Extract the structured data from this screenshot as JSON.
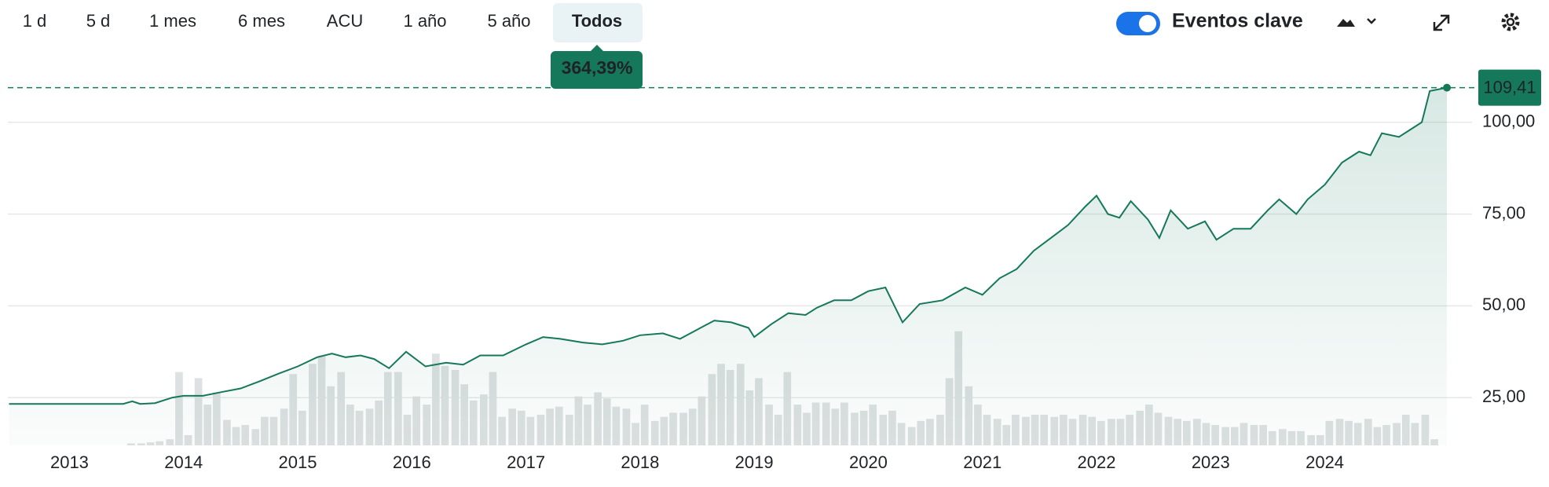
{
  "toolbar": {
    "ranges": [
      "1 d",
      "5 d",
      "1 mes",
      "6 mes",
      "ACU",
      "1 año",
      "5 año",
      "Todos"
    ],
    "selected": 7,
    "change_label": "364,39%",
    "events_label": "Eventos clave"
  },
  "chart_data": {
    "type": "line",
    "grid": true,
    "color": "#15785b",
    "xlim": [
      2012.46,
      2025.29
    ],
    "ylim": [
      12,
      116.6
    ],
    "xticks": [
      2013,
      2014,
      2015,
      2016,
      2017,
      2018,
      2019,
      2020,
      2021,
      2022,
      2023,
      2024
    ],
    "yticks": [
      {
        "value": 25,
        "label": "25,00"
      },
      {
        "value": 50,
        "label": "50,00"
      },
      {
        "value": 75,
        "label": "75,00"
      },
      {
        "value": 100,
        "label": "100,00"
      }
    ],
    "last_price": {
      "value": 109.41,
      "label": "109,41"
    },
    "series": [
      {
        "color": "#15785b",
        "x": [
          2012.47,
          2013.47,
          2013.55,
          2013.62,
          2013.75,
          2013.9,
          2014.0,
          2014.17,
          2014.33,
          2014.5,
          2014.67,
          2014.83,
          2015.0,
          2015.17,
          2015.3,
          2015.42,
          2015.55,
          2015.67,
          2015.8,
          2015.95,
          2016.12,
          2016.3,
          2016.45,
          2016.6,
          2016.8,
          2017.0,
          2017.15,
          2017.3,
          2017.5,
          2017.67,
          2017.85,
          2018.0,
          2018.2,
          2018.35,
          2018.5,
          2018.65,
          2018.8,
          2018.95,
          2019.0,
          2019.15,
          2019.3,
          2019.45,
          2019.55,
          2019.7,
          2019.85,
          2020.0,
          2020.15,
          2020.3,
          2020.45,
          2020.65,
          2020.85,
          2021.0,
          2021.15,
          2021.3,
          2021.45,
          2021.6,
          2021.75,
          2021.9,
          2022.0,
          2022.1,
          2022.2,
          2022.3,
          2022.45,
          2022.55,
          2022.65,
          2022.8,
          2022.95,
          2023.05,
          2023.2,
          2023.35,
          2023.5,
          2023.6,
          2023.75,
          2023.85,
          2024.0,
          2024.15,
          2024.3,
          2024.4,
          2024.5,
          2024.65,
          2024.75,
          2024.85,
          2024.92,
          2025.07
        ],
        "values": [
          23.3,
          23.3,
          24,
          23.3,
          23.5,
          25,
          25.5,
          25.5,
          26.5,
          27.5,
          29.5,
          31.5,
          33.5,
          36,
          37,
          36,
          36.5,
          35.5,
          33,
          37.5,
          33.5,
          34.5,
          34,
          36.5,
          36.5,
          39.5,
          41.5,
          41,
          40,
          39.5,
          40.5,
          42,
          42.5,
          41,
          43.5,
          46,
          45.5,
          44,
          41.5,
          45,
          48,
          47.5,
          49.5,
          51.5,
          51.5,
          54,
          55,
          45.5,
          50.5,
          51.5,
          55,
          53,
          57.5,
          60,
          65,
          68.5,
          72,
          77,
          80,
          75,
          74,
          78.5,
          73.5,
          68.5,
          76,
          71,
          73,
          68,
          71,
          71,
          76,
          79,
          75,
          79,
          83,
          89,
          92,
          91,
          97,
          96,
          98,
          100,
          108.5,
          109.41
        ]
      }
    ],
    "volume": {
      "color": "#dde1e1",
      "ylim": [
        0,
        377
      ],
      "x": [
        2013.54,
        2013.63,
        2013.71,
        2013.79,
        2013.88,
        2013.96,
        2014.04,
        2014.13,
        2014.21,
        2014.29,
        2014.38,
        2014.46,
        2014.54,
        2014.63,
        2014.71,
        2014.79,
        2014.88,
        2014.96,
        2015.04,
        2015.13,
        2015.21,
        2015.29,
        2015.38,
        2015.46,
        2015.54,
        2015.63,
        2015.71,
        2015.79,
        2015.88,
        2015.96,
        2016.04,
        2016.13,
        2016.21,
        2016.29,
        2016.38,
        2016.46,
        2016.54,
        2016.63,
        2016.71,
        2016.79,
        2016.88,
        2016.96,
        2017.04,
        2017.13,
        2017.21,
        2017.29,
        2017.38,
        2017.46,
        2017.54,
        2017.63,
        2017.71,
        2017.79,
        2017.88,
        2017.96,
        2018.04,
        2018.13,
        2018.21,
        2018.29,
        2018.38,
        2018.46,
        2018.54,
        2018.63,
        2018.71,
        2018.79,
        2018.88,
        2018.96,
        2019.04,
        2019.13,
        2019.21,
        2019.29,
        2019.38,
        2019.46,
        2019.54,
        2019.63,
        2019.71,
        2019.79,
        2019.88,
        2019.96,
        2020.04,
        2020.13,
        2020.21,
        2020.29,
        2020.38,
        2020.46,
        2020.54,
        2020.63,
        2020.71,
        2020.79,
        2020.88,
        2020.96,
        2021.04,
        2021.13,
        2021.21,
        2021.29,
        2021.38,
        2021.46,
        2021.54,
        2021.63,
        2021.71,
        2021.79,
        2021.88,
        2021.96,
        2022.04,
        2022.13,
        2022.21,
        2022.29,
        2022.38,
        2022.46,
        2022.54,
        2022.63,
        2022.71,
        2022.79,
        2022.88,
        2022.96,
        2023.04,
        2023.13,
        2023.21,
        2023.29,
        2023.38,
        2023.46,
        2023.54,
        2023.63,
        2023.71,
        2023.79,
        2023.88,
        2023.96,
        2024.04,
        2024.13,
        2024.21,
        2024.29,
        2024.38,
        2024.46,
        2024.54,
        2024.63,
        2024.71,
        2024.79,
        2024.88,
        2024.96
      ],
      "values": [
        2,
        2,
        3,
        4,
        6,
        72,
        10,
        66,
        40,
        52,
        25,
        18,
        20,
        16,
        28,
        28,
        36,
        70,
        34,
        80,
        88,
        58,
        72,
        40,
        34,
        36,
        44,
        72,
        72,
        30,
        48,
        40,
        90,
        78,
        74,
        60,
        44,
        50,
        72,
        28,
        36,
        34,
        28,
        30,
        36,
        38,
        30,
        48,
        40,
        52,
        46,
        38,
        36,
        22,
        40,
        24,
        28,
        32,
        32,
        36,
        48,
        70,
        80,
        74,
        80,
        54,
        66,
        40,
        30,
        72,
        40,
        32,
        42,
        42,
        36,
        42,
        32,
        34,
        40,
        30,
        34,
        22,
        18,
        24,
        26,
        30,
        66,
        112,
        58,
        40,
        30,
        26,
        20,
        30,
        28,
        30,
        30,
        28,
        30,
        26,
        30,
        28,
        24,
        26,
        26,
        30,
        34,
        40,
        32,
        28,
        26,
        24,
        26,
        22,
        20,
        18,
        18,
        22,
        20,
        20,
        14,
        16,
        14,
        14,
        10,
        10,
        24,
        26,
        24,
        22,
        26,
        18,
        20,
        22,
        30,
        22,
        30,
        6
      ]
    }
  }
}
